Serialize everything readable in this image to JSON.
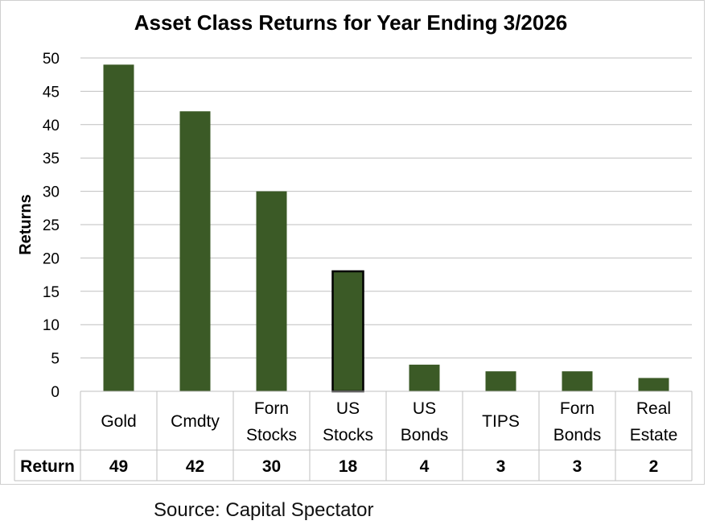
{
  "chart_data": {
    "type": "bar",
    "title": "Asset Class Returns for Year Ending 3/2026",
    "ylabel": "Returns",
    "xlabel": "",
    "ylim": [
      0,
      50
    ],
    "yticks": [
      0,
      5,
      10,
      15,
      20,
      25,
      30,
      35,
      40,
      45,
      50
    ],
    "grid": true,
    "categories": [
      [
        "Gold"
      ],
      [
        "Cmdty"
      ],
      [
        "Forn",
        "Stocks"
      ],
      [
        "US",
        "Stocks"
      ],
      [
        "US",
        "Bonds"
      ],
      [
        "TIPS"
      ],
      [
        "Forn",
        "Bonds"
      ],
      [
        "Real",
        "Estate"
      ]
    ],
    "series": [
      {
        "name": "Return",
        "values": [
          49,
          42,
          30,
          18,
          4,
          3,
          3,
          2
        ]
      }
    ],
    "data_table": true,
    "bar_color": "#3b5a26",
    "highlight_index": 3,
    "highlight_outline_color": "#000000"
  },
  "source": "Source: Capital Spectator"
}
